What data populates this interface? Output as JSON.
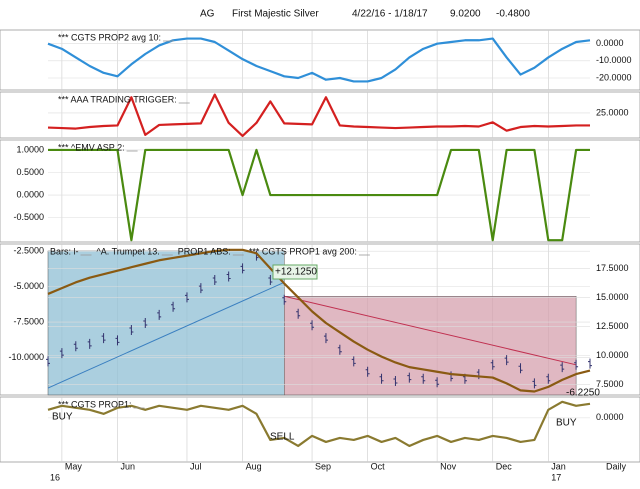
{
  "header": {
    "symbol": "AG",
    "name": "First Majestic Silver",
    "range": "4/22/16 - 1/18/17",
    "price": "9.0200",
    "change": "-0.4800"
  },
  "chart_data": [
    {
      "type": "line",
      "legend": [
        "*** CGTS PROP2 avg 10:"
      ],
      "tick_side": "right",
      "ylim": [
        -27,
        8
      ],
      "yticks": [
        {
          "value": 0,
          "label": "0.0000"
        },
        {
          "value": -10,
          "label": "-10.0000"
        },
        {
          "value": -20,
          "label": "-20.0000"
        }
      ],
      "series": [
        {
          "color": "#2f8fd8",
          "style": "line",
          "values": [
            0,
            -3,
            -8,
            -13,
            -17,
            -19,
            -12,
            -6,
            -1,
            2,
            3,
            3,
            1,
            -4,
            -9,
            -13,
            -16,
            -19,
            -20,
            -17,
            -21,
            -20,
            -22,
            -22,
            -20,
            -15,
            -8,
            -3,
            0,
            1,
            2,
            2,
            3,
            -8,
            -18,
            -14,
            -8,
            -3,
            1,
            2
          ]
        }
      ]
    },
    {
      "type": "line",
      "legend": [
        "*** AAA TRADING TRIGGER:"
      ],
      "tick_side": "right",
      "ylim": [
        20.2,
        29
      ],
      "yticks": [
        {
          "value": 25,
          "label": "25.0000"
        }
      ],
      "series": [
        {
          "color": "#d42020",
          "style": "line",
          "values": [
            22.2,
            22.1,
            22.0,
            22.3,
            22.5,
            22.6,
            28,
            20.8,
            22.7,
            22.8,
            22.9,
            23.0,
            28.5,
            23.1,
            20.6,
            23.1,
            27.2,
            23.0,
            22.9,
            22.8,
            28.0,
            22.6,
            22.4,
            22.3,
            22.2,
            22.1,
            22.2,
            22.3,
            22.4,
            22.4,
            22.5,
            22.4,
            23.2,
            21.6,
            22.3,
            22.5,
            22.4,
            22.5,
            22.6,
            22.6
          ]
        }
      ]
    },
    {
      "type": "line",
      "legend": [
        "*** ^EMV ASP 2:"
      ],
      "tick_side": "left",
      "ylim": [
        -1.04,
        1.22
      ],
      "yticks": [
        {
          "value": 1,
          "label": "1.0000"
        },
        {
          "value": 0.5,
          "label": "0.5000"
        },
        {
          "value": 0,
          "label": "0.0000"
        },
        {
          "value": -0.5,
          "label": "-0.5000"
        }
      ],
      "series": [
        {
          "color": "#4a8a10",
          "style": "line",
          "values": [
            1,
            1,
            1,
            1,
            1,
            1,
            -1,
            1,
            1,
            1,
            1,
            1,
            1,
            1,
            0,
            1,
            0,
            0,
            0,
            0,
            0,
            0,
            0,
            0,
            0,
            0,
            0,
            0,
            0,
            1,
            1,
            1,
            -1,
            1,
            1,
            1,
            -1,
            -1,
            1,
            1
          ]
        }
      ]
    },
    {
      "type": "line",
      "legend": [
        "Bars: l-",
        "^A. Trumpet 13.",
        "PROP1 ABS:",
        "*** CGTS PROP1 avg 200:"
      ],
      "tick_side": "left",
      "ylim": [
        -12.65,
        -1.99
      ],
      "yticks": [
        {
          "value": -2.5,
          "label": "-2.5000"
        },
        {
          "value": -5,
          "label": "-5.0000"
        },
        {
          "value": -7.5,
          "label": "-7.5000"
        },
        {
          "value": -10,
          "label": "-10.0000"
        }
      ],
      "y2lim": [
        6.6,
        19.6
      ],
      "y2ticks": [
        {
          "value": 17.5,
          "label": "17.5000"
        },
        {
          "value": 15,
          "label": "15.0000"
        },
        {
          "value": 12.5,
          "label": "12.5000"
        },
        {
          "value": 10,
          "label": "10.0000"
        },
        {
          "value": 7.5,
          "label": "7.5000"
        }
      ],
      "zones": [
        {
          "color": "#8fbfd4",
          "top": 19.0,
          "x": [
            0,
            17
          ]
        },
        {
          "color": "#d6a0ae",
          "top": 15.1,
          "x": [
            17,
            38
          ]
        }
      ],
      "trend_lines": [
        {
          "color": "#3a7fc0",
          "x": [
            0,
            17
          ],
          "values": [
            7.2,
            16.3
          ]
        },
        {
          "color": "#c03050",
          "x": [
            17,
            38
          ],
          "values": [
            15.1,
            9.2
          ]
        }
      ],
      "series": [
        {
          "color": "#33336e",
          "style": "bars",
          "axis": "y2",
          "values": [
            9.5,
            10.2,
            10.8,
            11.0,
            11.5,
            11.3,
            12.2,
            12.8,
            13.5,
            14.2,
            15.0,
            15.8,
            16.5,
            16.8,
            17.5,
            18.6,
            16.5,
            14.8,
            13.6,
            12.6,
            11.5,
            10.5,
            9.5,
            8.6,
            8.0,
            7.8,
            8.1,
            8.0,
            7.7,
            8.2,
            8.0,
            8.4,
            9.2,
            9.6,
            8.9,
            7.6,
            8.0,
            9.0,
            9.2,
            9.3
          ]
        },
        {
          "color": "#8a5a12",
          "style": "line",
          "axis": "y2",
          "values": [
            15.3,
            15.8,
            16.3,
            16.7,
            17.0,
            17.3,
            17.6,
            17.9,
            18.2,
            18.4,
            18.6,
            18.8,
            19.0,
            19.1,
            19.1,
            18.8,
            17.5,
            16.2,
            15.0,
            13.8,
            12.8,
            12.0,
            11.2,
            10.5,
            9.9,
            9.4,
            9.0,
            8.8,
            8.6,
            8.4,
            8.3,
            8.2,
            8.1,
            7.6,
            7.0,
            6.9,
            7.3,
            7.9,
            8.4,
            8.7
          ]
        }
      ],
      "annotations": [
        "+12.1250",
        "-6.2250"
      ]
    },
    {
      "type": "line",
      "legend": [
        "*** CGTS PROP1:"
      ],
      "tick_side": "right",
      "ylim": [
        -1.1,
        0.52
      ],
      "yticks": [
        {
          "value": 0,
          "label": "0.0000"
        }
      ],
      "series": [
        {
          "color": "#8a7a30",
          "style": "line",
          "values": [
            0.2,
            0.3,
            0.25,
            0.2,
            0.1,
            0.25,
            0.3,
            0.2,
            0.3,
            0.25,
            0.2,
            0.3,
            0.25,
            0.2,
            0.3,
            0.1,
            -0.55,
            -0.5,
            -0.7,
            -0.45,
            -0.6,
            -0.5,
            -0.55,
            -0.45,
            -0.6,
            -0.5,
            -0.7,
            -0.55,
            -0.45,
            -0.6,
            -0.5,
            -0.55,
            -0.45,
            -0.5,
            -0.6,
            -0.55,
            0.2,
            0.4,
            0.3,
            0.35
          ]
        }
      ],
      "annotations": [
        "BUY",
        "SELL",
        "BUY"
      ],
      "categories": [
        null,
        "May",
        null,
        null,
        null,
        "Jun",
        null,
        null,
        null,
        null,
        "Jul",
        null,
        null,
        null,
        "Aug",
        null,
        null,
        null,
        null,
        "Sep",
        null,
        null,
        null,
        "Oct",
        null,
        null,
        null,
        null,
        "Nov",
        null,
        null,
        null,
        "Dec",
        null,
        null,
        null,
        "Jan",
        null,
        null,
        null
      ],
      "years": [
        "16",
        "17"
      ],
      "period": "Daily"
    }
  ]
}
